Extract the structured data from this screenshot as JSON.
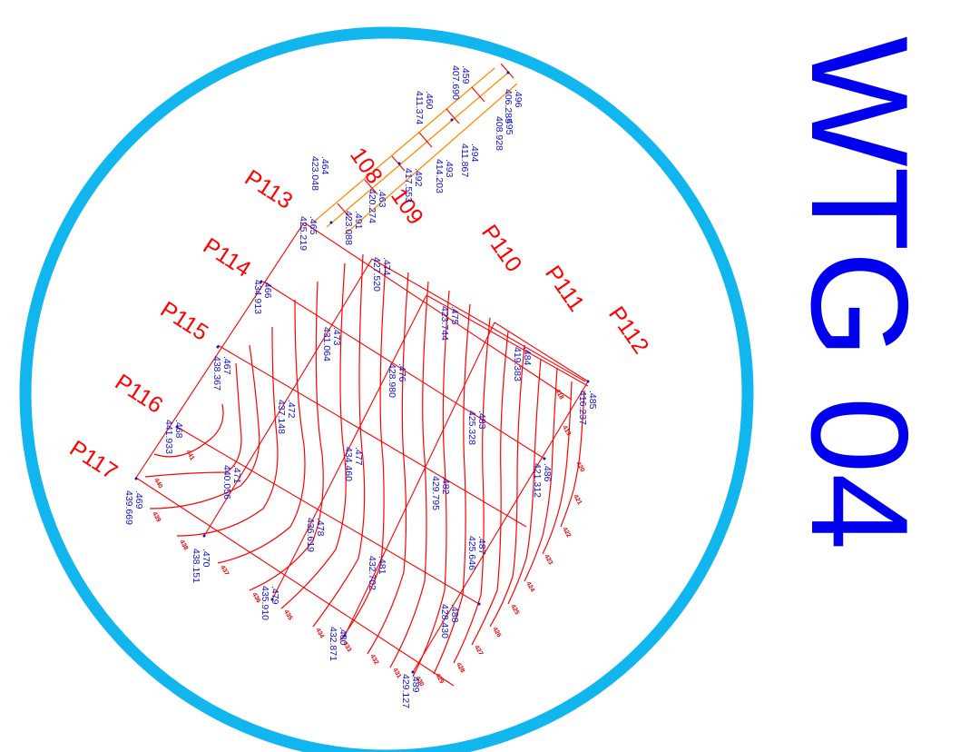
{
  "colors": {
    "circle": "#11b6ee",
    "title": "#0000ee",
    "profiles": "#ff0000",
    "points": "#1010cc",
    "access_road": "#ff8c00"
  },
  "title": "WTG 04",
  "profiles": [
    "P110",
    "P111",
    "P112",
    "P113",
    "P114",
    "P115",
    "P116",
    "P117"
  ],
  "partial_labels": [
    "108",
    "109"
  ],
  "survey_points": [
    {
      "id": ".496",
      "elev": "406.285"
    },
    {
      "id": ".459",
      "elev": "407.690"
    },
    {
      "id": ".495",
      "elev": "408.928"
    },
    {
      "id": ".494",
      "elev": "411.867"
    },
    {
      "id": ".460",
      "elev": "411.374"
    },
    {
      "id": ".493",
      "elev": "414.203"
    },
    {
      "id": ".492",
      "elev": "417.553"
    },
    {
      "id": ".463",
      "elev": "420.274"
    },
    {
      "id": ".491",
      "elev": "423.088"
    },
    {
      "id": ".464",
      "elev": "423.048"
    },
    {
      "id": ".465",
      "elev": "425.219"
    },
    {
      "id": ".466",
      "elev": "434.913"
    },
    {
      "id": ".467",
      "elev": "438.367"
    },
    {
      "id": ".468",
      "elev": "441.933"
    },
    {
      "id": ".469",
      "elev": "439.669"
    },
    {
      "id": ".470",
      "elev": "438.151"
    },
    {
      "id": ".471",
      "elev": "440.056"
    },
    {
      "id": ".472",
      "elev": "437.148"
    },
    {
      "id": ".473",
      "elev": "431.064"
    },
    {
      "id": ".474",
      "elev": "427.520"
    },
    {
      "id": ".475",
      "elev": "423.744"
    },
    {
      "id": ".476",
      "elev": "428.980"
    },
    {
      "id": ".477",
      "elev": "434.460"
    },
    {
      "id": ".478",
      "elev": "436.619"
    },
    {
      "id": ".479",
      "elev": "435.910"
    },
    {
      "id": ".480",
      "elev": "432.871"
    },
    {
      "id": ".481",
      "elev": "432.702"
    },
    {
      "id": ".482",
      "elev": "429.795"
    },
    {
      "id": ".483",
      "elev": "425.328"
    },
    {
      "id": ".484",
      "elev": "419.383"
    },
    {
      "id": ".485",
      "elev": "416.237"
    },
    {
      "id": ".486",
      "elev": "421.312"
    },
    {
      "id": ".487",
      "elev": "425.646"
    },
    {
      "id": ".488",
      "elev": "428.430"
    },
    {
      "id": ".489",
      "elev": "429.127"
    }
  ],
  "contour_labels": [
    "441",
    "440",
    "439",
    "438",
    "437",
    "436",
    "435",
    "434",
    "433",
    "432",
    "431",
    "430",
    "429",
    "428",
    "427",
    "426",
    "425",
    "424",
    "423",
    "422",
    "421",
    "420",
    "419",
    "418"
  ]
}
